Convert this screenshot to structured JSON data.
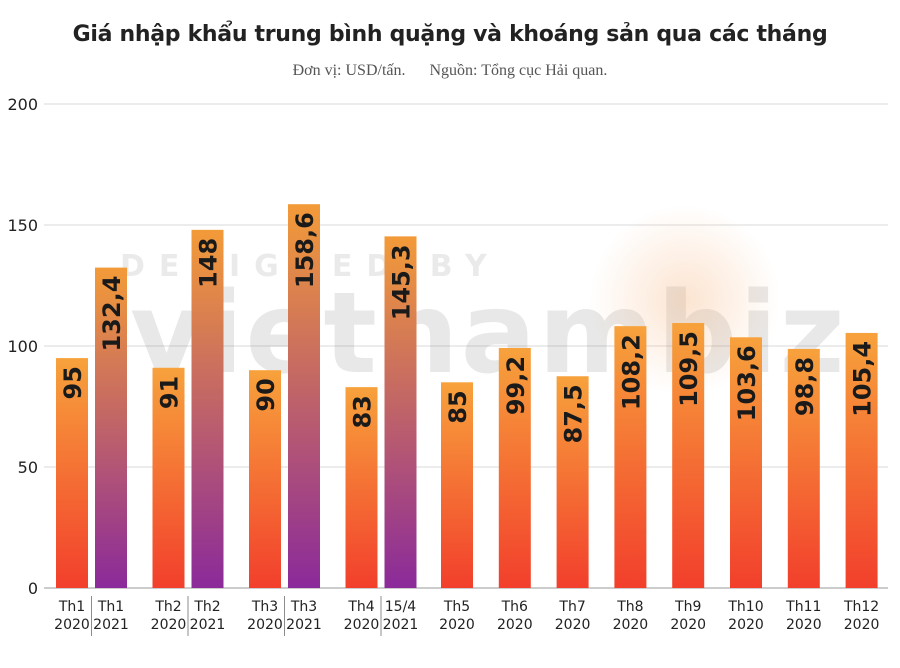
{
  "title": "Giá nhập khẩu trung bình quặng và khoáng sản qua các tháng",
  "subtitle": {
    "unit": "Đơn vị: USD/tấn.",
    "source": "Nguồn: Tổng cục Hải quan."
  },
  "watermark": {
    "top": "DESIGNED BY",
    "brand": "vietnambiz"
  },
  "colors": {
    "orange_top": "#f7a23c",
    "orange_bottom": "#f23f2c",
    "purple_top": "#f39b38",
    "purple_bottom": "#8b2a9a",
    "grid": "#d9d9d9",
    "separator": "#8c8c8c"
  },
  "chart_data": {
    "type": "bar",
    "title": "Giá nhập khẩu trung bình quặng và khoáng sản qua các tháng",
    "ylim": [
      0,
      200
    ],
    "yticks": [
      0,
      50,
      100,
      150,
      200
    ],
    "grid": true,
    "categories": [
      [
        "Th1",
        "2020"
      ],
      [
        "Th1",
        "2021"
      ],
      [
        "Th2",
        "2020"
      ],
      [
        "Th2",
        "2021"
      ],
      [
        "Th3",
        "2020"
      ],
      [
        "Th3",
        "2021"
      ],
      [
        "Th4",
        "2020"
      ],
      [
        "15/4",
        "2021"
      ],
      [
        "Th5",
        "2020"
      ],
      [
        "Th6",
        "2020"
      ],
      [
        "Th7",
        "2020"
      ],
      [
        "Th8",
        "2020"
      ],
      [
        "Th9",
        "2020"
      ],
      [
        "Th10",
        "2020"
      ],
      [
        "Th11",
        "2020"
      ],
      [
        "Th12",
        "2020"
      ]
    ],
    "values": [
      95,
      132.4,
      91,
      148,
      90,
      158.6,
      83,
      145.3,
      85,
      99.2,
      87.5,
      108.2,
      109.5,
      103.6,
      98.8,
      105.4
    ],
    "labels": [
      "95",
      "132,4",
      "91",
      "148",
      "90",
      "158,6",
      "83",
      "145,3",
      "85",
      "99,2",
      "87,5",
      "108,2",
      "109,5",
      "103,6",
      "98,8",
      "105,4"
    ],
    "year_of_bar": [
      "2020",
      "2021",
      "2020",
      "2021",
      "2020",
      "2021",
      "2020",
      "2021",
      "2020",
      "2020",
      "2020",
      "2020",
      "2020",
      "2020",
      "2020",
      "2020"
    ]
  }
}
